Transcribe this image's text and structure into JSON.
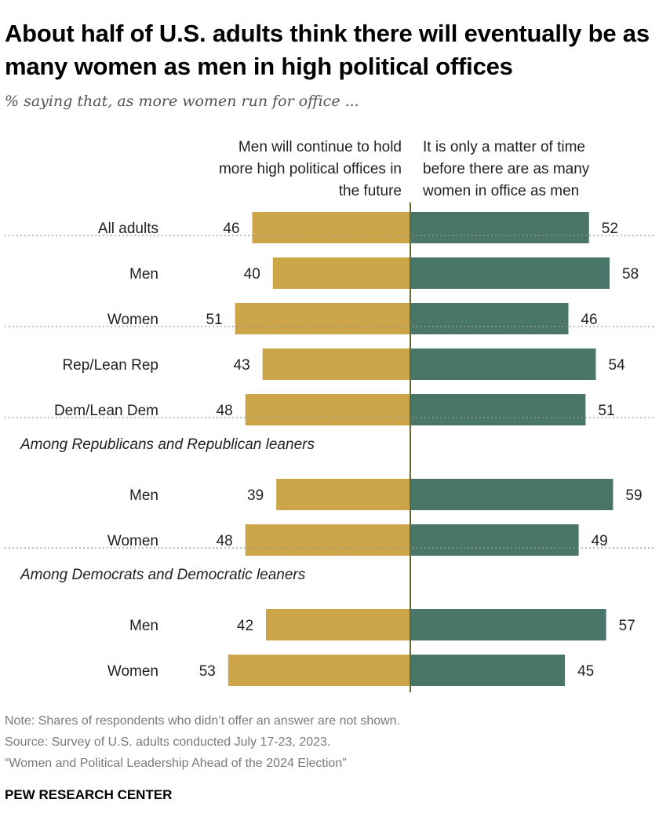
{
  "title": "About half of U.S. adults think there will eventually be as many women as men in high political offices",
  "subtitle": "% saying that, as more women run for office ...",
  "notes": [
    "Note: Shares of respondents who didn’t offer an answer are not shown.",
    "Source: Survey of U.S. adults conducted July 17-23, 2023.",
    "“Women and Political Leadership Ahead of the 2024 Election”"
  ],
  "brand": "PEW RESEARCH CENTER",
  "colors": {
    "left": "#CCA549",
    "right": "#4A7669",
    "axis": "#6B6A2E"
  },
  "chart_data": {
    "type": "bar",
    "orientation": "diverging-horizontal",
    "series": [
      {
        "name": "Men will continue to hold more high political offices in the future",
        "side": "left"
      },
      {
        "name": "It is only a matter of time before there are as many women in office as men",
        "side": "right"
      }
    ],
    "headers": {
      "left": [
        "Men will continue to hold",
        "more high political offices in",
        "the future"
      ],
      "right": [
        "It is only a matter of time",
        "before there are as many",
        "women in office as men"
      ]
    },
    "groups": [
      {
        "heading": "",
        "rows": [
          {
            "label": "All adults",
            "left": 46,
            "right": 52
          }
        ]
      },
      {
        "heading": "",
        "rows": [
          {
            "label": "Men",
            "left": 40,
            "right": 58
          },
          {
            "label": "Women",
            "left": 51,
            "right": 46
          }
        ]
      },
      {
        "heading": "",
        "rows": [
          {
            "label": "Rep/Lean Rep",
            "left": 43,
            "right": 54
          },
          {
            "label": "Dem/Lean Dem",
            "left": 48,
            "right": 51
          }
        ]
      },
      {
        "heading": "Among Republicans and Republican leaners",
        "rows": [
          {
            "label": "Men",
            "left": 39,
            "right": 59
          },
          {
            "label": "Women",
            "left": 48,
            "right": 49
          }
        ]
      },
      {
        "heading": "Among Democrats and Democratic leaners",
        "rows": [
          {
            "label": "Men",
            "left": 42,
            "right": 57
          },
          {
            "label": "Women",
            "left": 53,
            "right": 45
          }
        ]
      }
    ]
  }
}
